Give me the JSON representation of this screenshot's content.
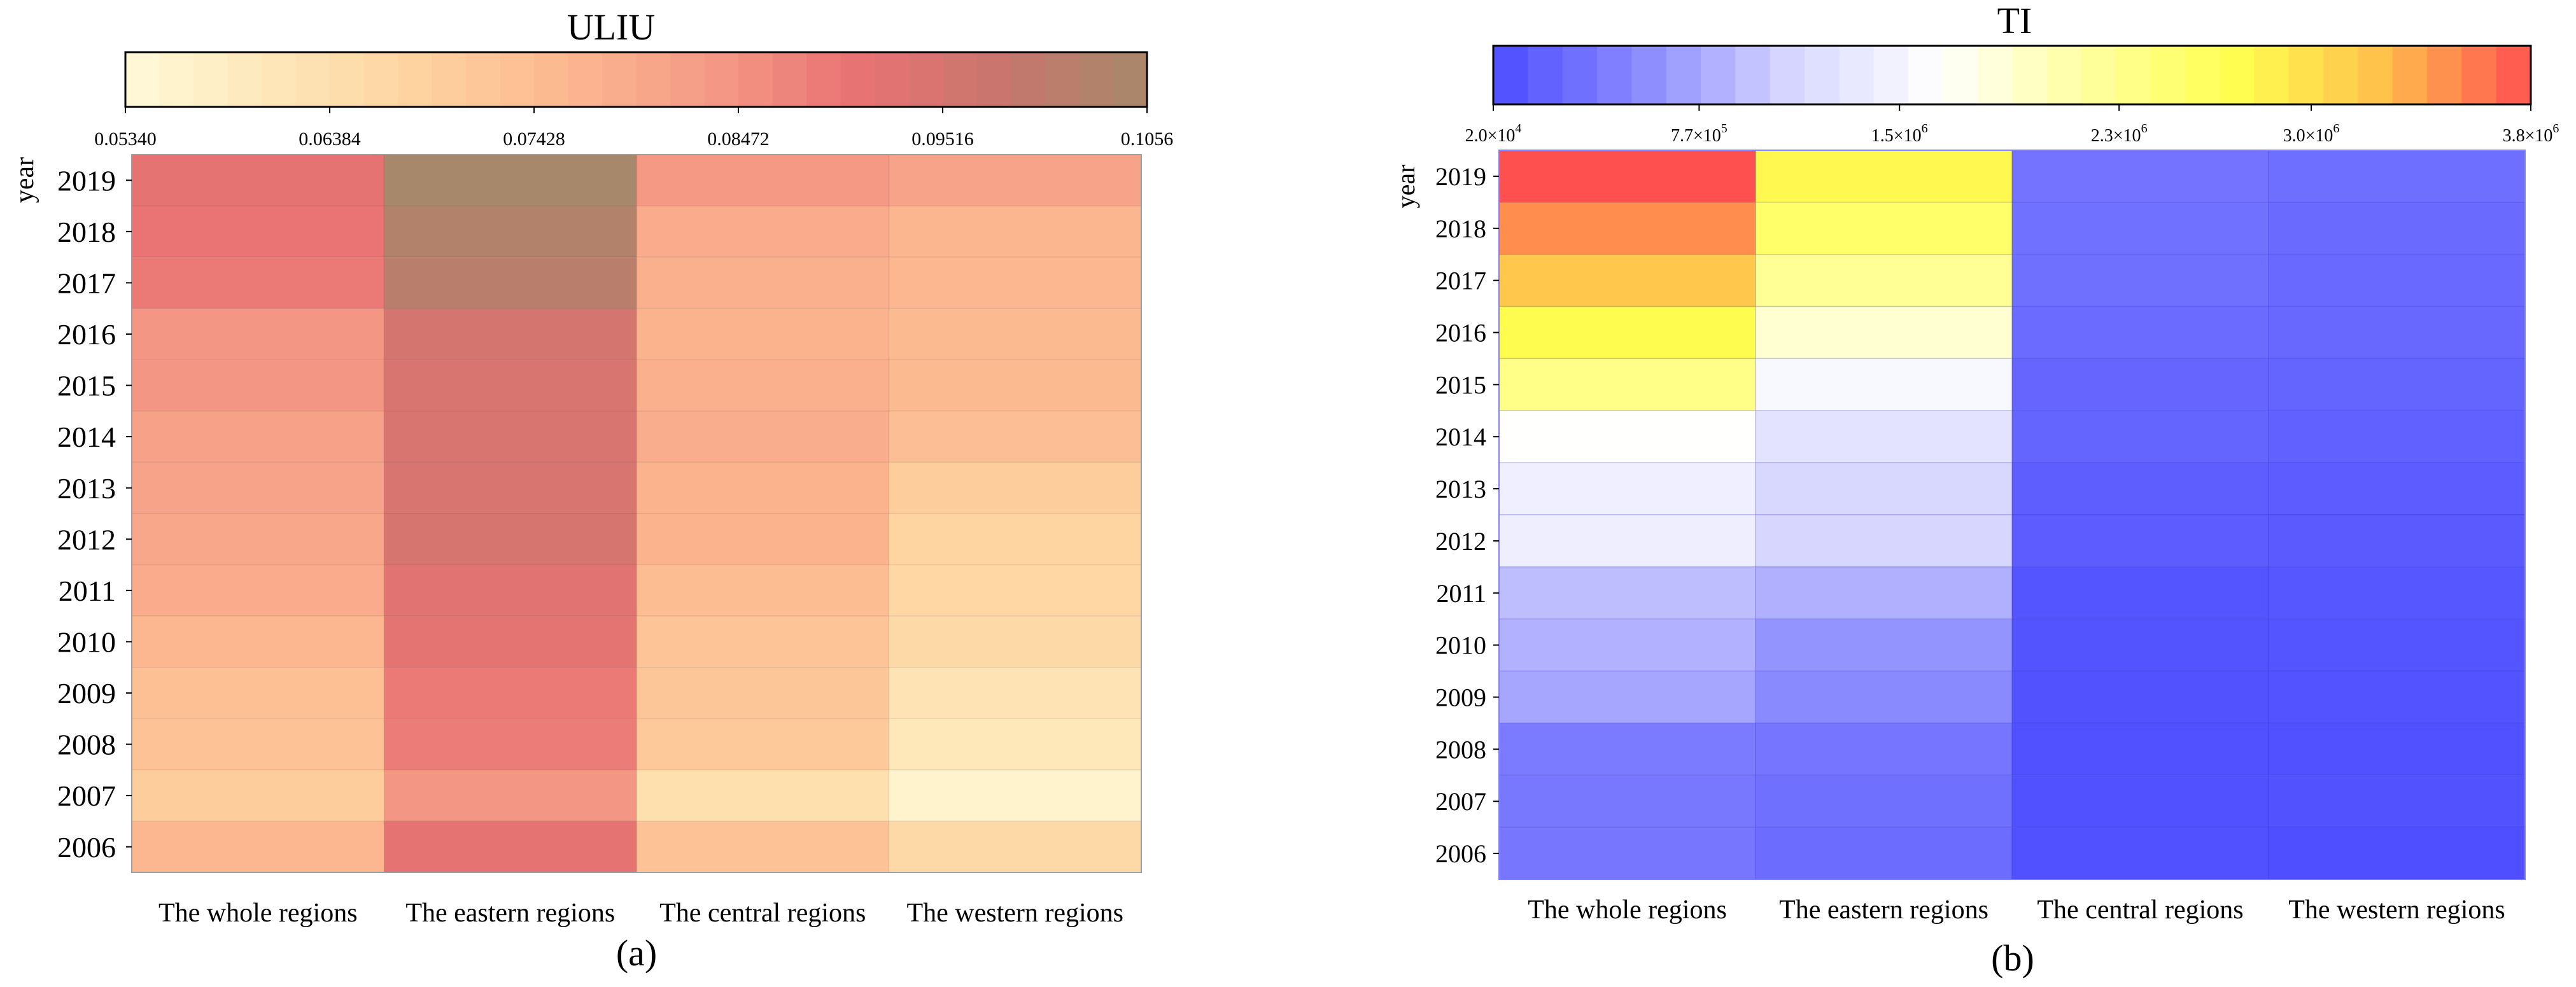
{
  "chart_data": [
    {
      "type": "heatmap",
      "title": "ULIU",
      "panel_label": "(a)",
      "ylabel": "year",
      "categories": [
        "The whole regions",
        "The eastern regions",
        "The central regions",
        "The western regions"
      ],
      "years": [
        "2019",
        "2018",
        "2017",
        "2016",
        "2015",
        "2014",
        "2013",
        "2012",
        "2011",
        "2010",
        "2009",
        "2008",
        "2007",
        "2006"
      ],
      "colorbar": {
        "min": 0.0534,
        "max": 0.1056,
        "ticks": [
          0.0534,
          0.06384,
          0.07428,
          0.08472,
          0.09516,
          0.1056
        ],
        "tick_labels": [
          "0.05340",
          "0.06384",
          "0.07428",
          "0.08472",
          "0.09516",
          "0.1056"
        ],
        "colors": [
          "#fff9d9",
          "#fee7b9",
          "#fed3a0",
          "#fcb890",
          "#f59a86",
          "#e97373",
          "#c8766e",
          "#a8886a"
        ]
      },
      "values": [
        [
          0.0915,
          0.1056,
          0.0835,
          0.081
        ],
        [
          0.0905,
          0.103,
          0.079,
          0.0765
        ],
        [
          0.0895,
          0.1015,
          0.078,
          0.076
        ],
        [
          0.084,
          0.0955,
          0.077,
          0.0752
        ],
        [
          0.084,
          0.0945,
          0.078,
          0.0752
        ],
        [
          0.0815,
          0.0945,
          0.0785,
          0.074
        ],
        [
          0.081,
          0.0945,
          0.077,
          0.07
        ],
        [
          0.08,
          0.095,
          0.077,
          0.068
        ],
        [
          0.079,
          0.0925,
          0.0745,
          0.067
        ],
        [
          0.076,
          0.092,
          0.0725,
          0.066
        ],
        [
          0.0735,
          0.0895,
          0.072,
          0.062
        ],
        [
          0.073,
          0.089,
          0.071,
          0.061
        ],
        [
          0.07,
          0.084,
          0.064,
          0.056
        ],
        [
          0.076,
          0.0915,
          0.073,
          0.066
        ]
      ]
    },
    {
      "type": "heatmap",
      "title": "TI",
      "panel_label": "(b)",
      "ylabel": "year",
      "categories": [
        "The whole regions",
        "The eastern regions",
        "The central regions",
        "The western regions"
      ],
      "years": [
        "2019",
        "2018",
        "2017",
        "2016",
        "2015",
        "2014",
        "2013",
        "2012",
        "2011",
        "2010",
        "2009",
        "2008",
        "2007",
        "2006"
      ],
      "colorbar": {
        "min": 20000,
        "max": 3800000,
        "ticks": [
          20000,
          770000,
          1500000,
          2300000,
          3000000,
          3800000
        ],
        "tick_labels": [
          {
            "mant": "2.0×10",
            "exp": "4"
          },
          {
            "mant": "7.7×10",
            "exp": "5"
          },
          {
            "mant": "1.5×10",
            "exp": "6"
          },
          {
            "mant": "2.3×10",
            "exp": "6"
          },
          {
            "mant": "3.0×10",
            "exp": "6"
          },
          {
            "mant": "3.8×10",
            "exp": "6"
          }
        ],
        "colors": [
          "#4c4cff",
          "#8a8aff",
          "#d6d6ff",
          "#ffffff",
          "#ffffa0",
          "#ffff50",
          "#ffc04c",
          "#ff5050"
        ]
      },
      "values": [
        [
          3800000,
          2780000,
          360000,
          320000
        ],
        [
          3500000,
          2550000,
          340000,
          280000
        ],
        [
          3200000,
          2250000,
          330000,
          275000
        ],
        [
          2750000,
          1900000,
          290000,
          260000
        ],
        [
          2350000,
          1550000,
          250000,
          230000
        ],
        [
          1650000,
          1270000,
          230000,
          200000
        ],
        [
          1430000,
          1130000,
          180000,
          170000
        ],
        [
          1420000,
          1100000,
          170000,
          140000
        ],
        [
          930000,
          830000,
          100000,
          120000
        ],
        [
          840000,
          630000,
          90000,
          100000
        ],
        [
          760000,
          560000,
          70000,
          80000
        ],
        [
          430000,
          380000,
          60000,
          60000
        ],
        [
          400000,
          330000,
          60000,
          70000
        ],
        [
          390000,
          300000,
          60000,
          50000
        ]
      ]
    }
  ]
}
